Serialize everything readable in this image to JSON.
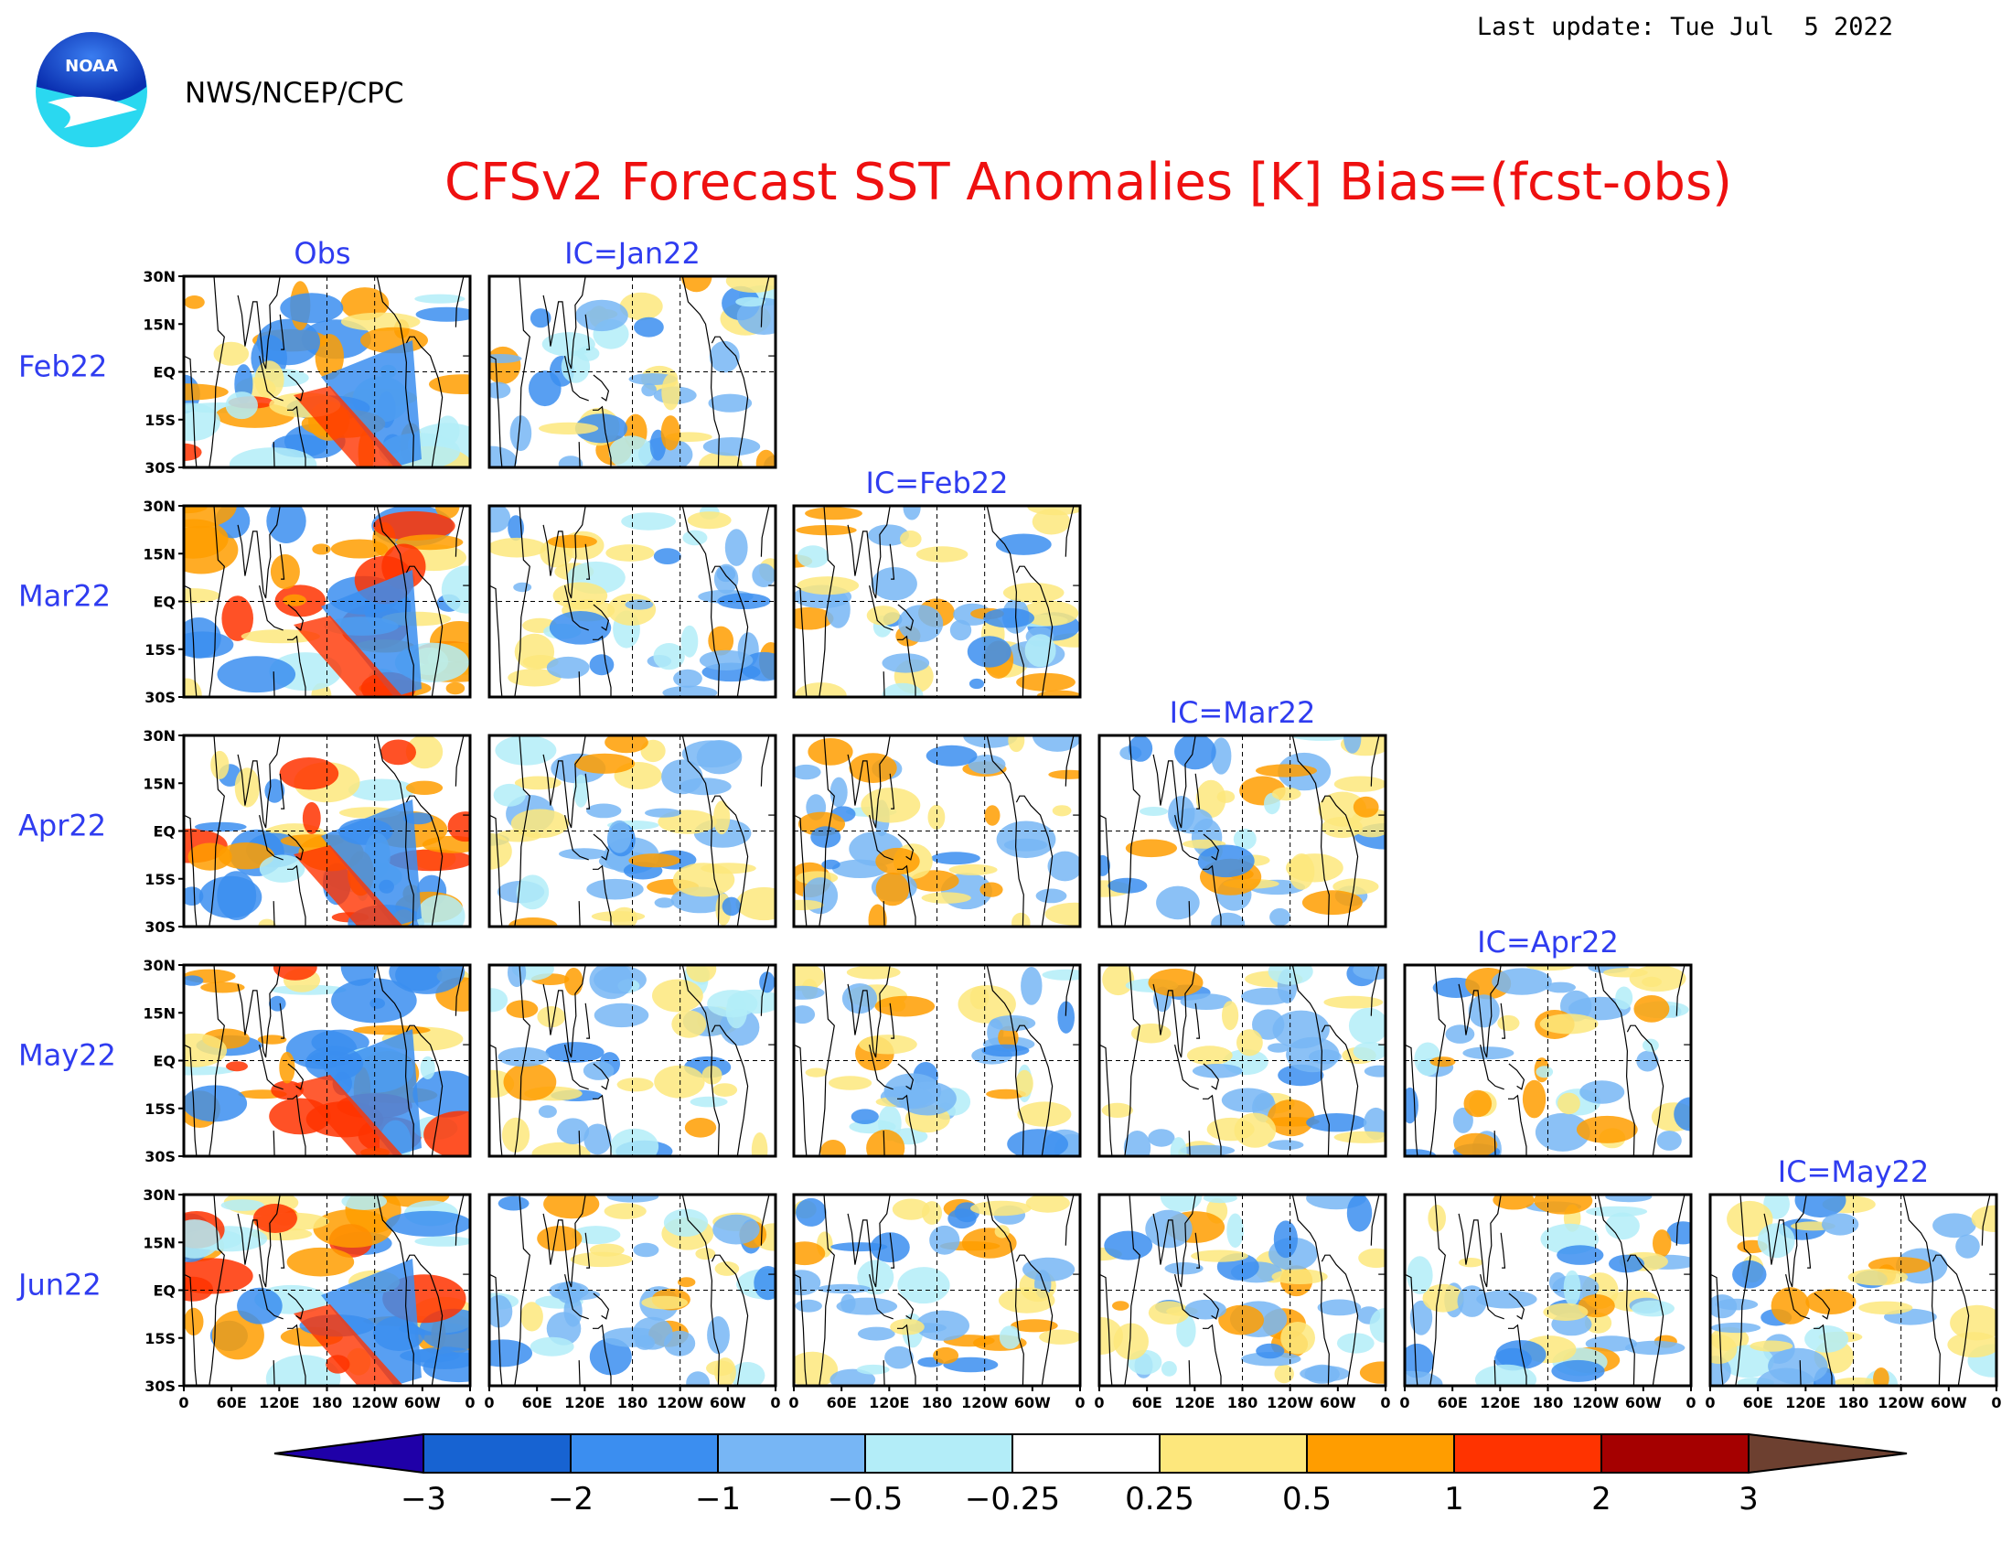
{
  "header": {
    "last_update": "Last update: Tue Jul  5 2022",
    "agency": "NWS/NCEP/CPC",
    "logo_text": "NOAA"
  },
  "chart_data": {
    "type": "heatmap",
    "title": "CFSv2 Forecast SST Anomalies [K] Bias=(fcst-obs)",
    "columns": [
      {
        "label": "Obs",
        "first_row": 0
      },
      {
        "label": "IC=Jan22",
        "first_row": 0
      },
      {
        "label": "IC=Feb22",
        "first_row": 1
      },
      {
        "label": "IC=Mar22",
        "first_row": 2
      },
      {
        "label": "IC=Apr22",
        "first_row": 3
      },
      {
        "label": "IC=May22",
        "first_row": 4
      }
    ],
    "rows": [
      "Feb22",
      "Mar22",
      "Apr22",
      "May22",
      "Jun22"
    ],
    "y_ticks": [
      "30N",
      "15N",
      "EQ",
      "15S",
      "30S"
    ],
    "x_ticks": [
      "0",
      "60E",
      "120E",
      "180",
      "120W",
      "60W",
      "0"
    ],
    "lat_range": [
      -30,
      30
    ],
    "lon_range": [
      0,
      360
    ],
    "colorbar": {
      "ticks": [
        "-3",
        "-2",
        "-1",
        "-0.5",
        "-0.25",
        "0.25",
        "0.5",
        "1",
        "2",
        "3"
      ],
      "colors": [
        "#1f00a8",
        "#1763d2",
        "#3b8ef0",
        "#77b6f5",
        "#b3edf8",
        "#ffffff",
        "#fde77c",
        "#ff9d00",
        "#ff3300",
        "#a50000",
        "#6d4030"
      ]
    },
    "colors": {
      "neg_strong": "#1763d2",
      "neg_mid": "#3b8ef0",
      "neg_light": "#77b6f5",
      "neg_faint": "#b3edf8",
      "pos_faint": "#fde77c",
      "pos_mid": "#ff9d00",
      "pos_strong": "#ff3300",
      "pos_extreme": "#a50000"
    }
  }
}
